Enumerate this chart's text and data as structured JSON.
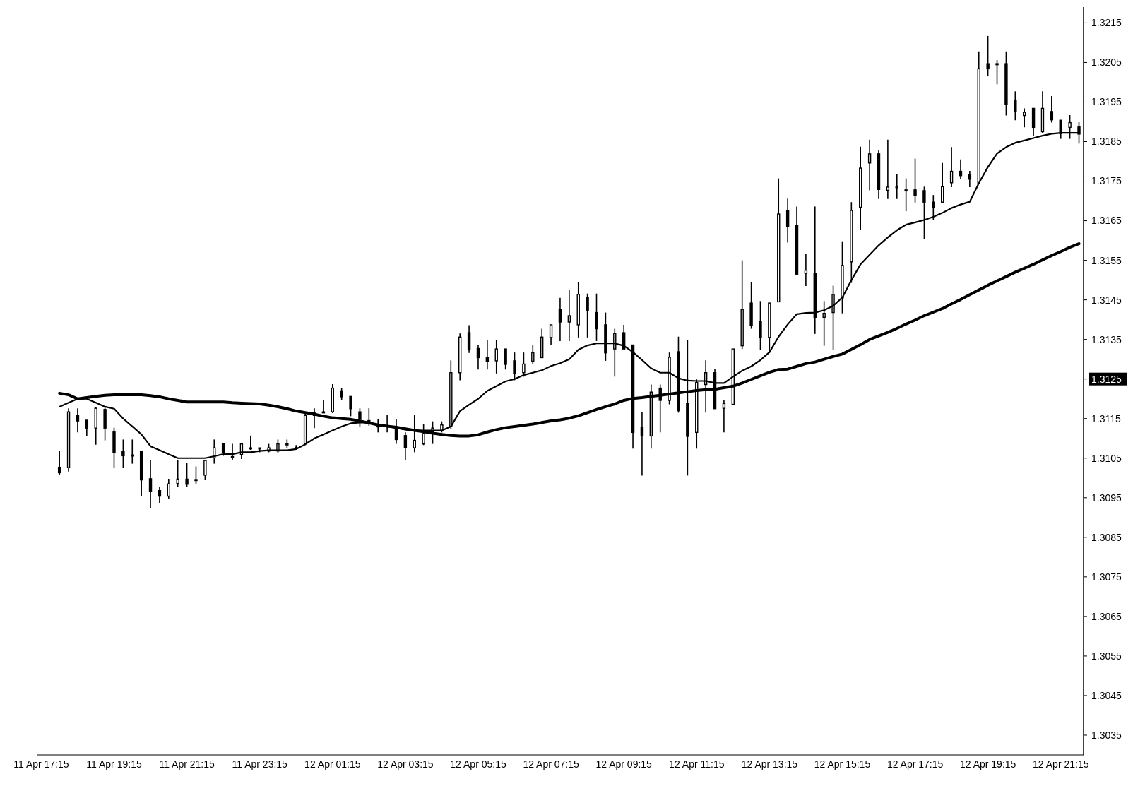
{
  "chart_data": {
    "type": "candlestick",
    "categories": [
      "11 Apr 17:15",
      null,
      null,
      null,
      null,
      null,
      null,
      null,
      "11 Apr 19:15",
      null,
      null,
      null,
      null,
      null,
      null,
      null,
      "11 Apr 21:15",
      null,
      null,
      null,
      null,
      null,
      null,
      null,
      "11 Apr 23:15",
      null,
      null,
      null,
      null,
      null,
      null,
      null,
      "12 Apr 01:15",
      null,
      null,
      null,
      null,
      null,
      null,
      null,
      "12 Apr 03:15",
      null,
      null,
      null,
      null,
      null,
      null,
      null,
      "12 Apr 05:15",
      null,
      null,
      null,
      null,
      null,
      null,
      null,
      "12 Apr 07:15",
      null,
      null,
      null,
      null,
      null,
      null,
      null,
      "12 Apr 09:15",
      null,
      null,
      null,
      null,
      null,
      null,
      null,
      "12 Apr 11:15",
      null,
      null,
      null,
      null,
      null,
      null,
      null,
      "12 Apr 13:15",
      null,
      null,
      null,
      null,
      null,
      null,
      null,
      "12 Apr 15:15",
      null,
      null,
      null,
      null,
      null,
      null,
      null,
      "12 Apr 17:15",
      null,
      null,
      null,
      null,
      null,
      null,
      null,
      "12 Apr 19:15",
      null,
      null,
      null,
      null,
      null,
      null,
      null,
      "12 Apr 21:15",
      null,
      null
    ],
    "ohlc": [
      null,
      null,
      [
        1.31027,
        1.31068,
        1.31007,
        1.31013
      ],
      [
        1.31026,
        1.31176,
        1.31016,
        1.31167
      ],
      [
        1.31158,
        1.31176,
        1.31115,
        1.31144
      ],
      [
        1.31146,
        1.31146,
        1.31106,
        1.31126
      ],
      [
        1.31126,
        1.31179,
        1.31084,
        1.31176
      ],
      [
        1.31173,
        1.31178,
        1.31095,
        1.31126
      ],
      [
        1.31116,
        1.31127,
        1.31026,
        1.31065
      ],
      [
        1.31068,
        1.31097,
        1.31026,
        1.31056
      ],
      [
        1.31058,
        1.31097,
        1.31036,
        1.31058
      ],
      [
        1.31068,
        1.31068,
        1.30954,
        1.30995
      ],
      [
        1.30998,
        1.31046,
        1.30924,
        1.30966
      ],
      [
        1.30968,
        1.30977,
        1.30937,
        1.30954
      ],
      [
        1.30954,
        1.30998,
        1.30946,
        1.30985
      ],
      [
        1.30986,
        1.31046,
        1.30977,
        1.30997
      ],
      [
        1.30997,
        1.31038,
        1.30977,
        1.30984
      ],
      [
        1.30996,
        1.31029,
        1.30984,
        1.30996
      ],
      [
        1.31007,
        1.31044,
        1.30996,
        1.31044
      ],
      [
        1.31051,
        1.31097,
        1.31036,
        1.31076
      ],
      [
        1.31086,
        1.31089,
        1.31056,
        1.31065
      ],
      [
        1.31054,
        1.31086,
        1.31044,
        1.31054
      ],
      [
        1.31059,
        1.31086,
        1.31048,
        1.31086
      ],
      [
        1.31076,
        1.31107,
        1.31071,
        1.31076
      ],
      [
        1.31076,
        1.31076,
        1.31065,
        1.31076
      ],
      [
        1.31068,
        1.31086,
        1.31065,
        1.31076
      ],
      [
        1.31068,
        1.31097,
        1.31064,
        1.31086
      ],
      [
        1.31086,
        1.31097,
        1.31076,
        1.31086
      ],
      [
        1.31077,
        1.31083,
        1.31071,
        1.31077
      ],
      [
        1.31086,
        1.31167,
        1.31083,
        1.31158
      ],
      [
        1.31158,
        1.31176,
        1.31126,
        1.31164
      ],
      [
        1.31167,
        1.31196,
        1.31164,
        1.31167
      ],
      [
        1.31167,
        1.31237,
        1.31164,
        1.31227
      ],
      [
        1.3122,
        1.31227,
        1.31196,
        1.31205
      ],
      [
        1.31206,
        1.31206,
        1.31156,
        1.31175
      ],
      [
        1.31167,
        1.31176,
        1.31128,
        1.31148
      ],
      [
        1.31145,
        1.31176,
        1.31132,
        1.31138
      ],
      [
        1.31136,
        1.31148,
        1.31115,
        1.31129
      ],
      [
        1.31132,
        1.31159,
        1.31115,
        1.31132
      ],
      [
        1.31129,
        1.31148,
        1.31086,
        1.31097
      ],
      [
        1.31107,
        1.31115,
        1.31045,
        1.31077
      ],
      [
        1.31076,
        1.31159,
        1.31065,
        1.31095
      ],
      [
        1.31086,
        1.31136,
        1.31083,
        1.31112
      ],
      [
        1.31117,
        1.31143,
        1.31086,
        1.31126
      ],
      [
        1.31119,
        1.31143,
        1.31115,
        1.31134
      ],
      [
        1.3113,
        1.31297,
        1.31123,
        1.31266
      ],
      [
        1.31266,
        1.31365,
        1.31247,
        1.31356
      ],
      [
        1.31367,
        1.31386,
        1.31316,
        1.31324
      ],
      [
        1.31327,
        1.31336,
        1.31274,
        1.31304
      ],
      [
        1.31305,
        1.31348,
        1.31274,
        1.31295
      ],
      [
        1.31296,
        1.31348,
        1.31264,
        1.31326
      ],
      [
        1.31326,
        1.31326,
        1.31274,
        1.31287
      ],
      [
        1.31296,
        1.31317,
        1.31247,
        1.31264
      ],
      [
        1.31266,
        1.31317,
        1.31256,
        1.31288
      ],
      [
        1.31295,
        1.31336,
        1.31287,
        1.31317
      ],
      [
        1.31304,
        1.31377,
        1.31304,
        1.31356
      ],
      [
        1.31355,
        1.31387,
        1.31336,
        1.31387
      ],
      [
        1.31426,
        1.31455,
        1.31346,
        1.31394
      ],
      [
        1.31394,
        1.31476,
        1.31346,
        1.3141
      ],
      [
        1.31387,
        1.31495,
        1.31355,
        1.31464
      ],
      [
        1.31456,
        1.31466,
        1.31355,
        1.31424
      ],
      [
        1.31418,
        1.31466,
        1.31346,
        1.31377
      ],
      [
        1.31387,
        1.31418,
        1.31296,
        1.31316
      ],
      [
        1.31326,
        1.31377,
        1.31256,
        1.31365
      ],
      [
        1.31367,
        1.31387,
        1.31326,
        1.31326
      ],
      [
        1.31336,
        1.31336,
        1.31074,
        1.31115
      ],
      [
        1.31128,
        1.31167,
        1.31006,
        1.31106
      ],
      [
        1.31106,
        1.31236,
        1.31074,
        1.31217
      ],
      [
        1.31227,
        1.31236,
        1.31115,
        1.31196
      ],
      [
        1.31196,
        1.31317,
        1.31186,
        1.31305
      ],
      [
        1.31319,
        1.31357,
        1.31165,
        1.3117
      ],
      [
        1.31189,
        1.31348,
        1.31006,
        1.31105
      ],
      [
        1.31115,
        1.31249,
        1.31074,
        1.31241
      ],
      [
        1.31236,
        1.31297,
        1.31165,
        1.31266
      ],
      [
        1.31266,
        1.31275,
        1.31175,
        1.31175
      ],
      [
        1.31176,
        1.31196,
        1.31115,
        1.31188
      ],
      [
        1.31186,
        1.31326,
        1.31186,
        1.31326
      ],
      [
        1.31334,
        1.3155,
        1.31326,
        1.31426
      ],
      [
        1.31442,
        1.31495,
        1.31377,
        1.31385
      ],
      [
        1.31396,
        1.31447,
        1.31324,
        1.31355
      ],
      [
        1.31355,
        1.31442,
        1.31316,
        1.31442
      ],
      [
        1.31445,
        1.31757,
        1.31445,
        1.31667
      ],
      [
        1.31676,
        1.31706,
        1.31595,
        1.31635
      ],
      [
        1.31638,
        1.31686,
        1.31515,
        1.31515
      ],
      [
        1.31517,
        1.31567,
        1.31485,
        1.31525
      ],
      [
        1.31517,
        1.31686,
        1.31364,
        1.31406
      ],
      [
        1.31406,
        1.31447,
        1.31334,
        1.31416
      ],
      [
        1.31418,
        1.31486,
        1.31324,
        1.31464
      ],
      [
        1.31455,
        1.31598,
        1.31416,
        1.31537
      ],
      [
        1.31546,
        1.31697,
        1.31493,
        1.31676
      ],
      [
        1.31684,
        1.31837,
        1.31626,
        1.31783
      ],
      [
        1.31796,
        1.31855,
        1.31727,
        1.31819
      ],
      [
        1.31819,
        1.31828,
        1.31705,
        1.31729
      ],
      [
        1.31727,
        1.31855,
        1.31705,
        1.31735
      ],
      [
        1.31736,
        1.31767,
        1.31705,
        1.31736
      ],
      [
        1.31728,
        1.31757,
        1.31674,
        1.31728
      ],
      [
        1.31728,
        1.31807,
        1.31696,
        1.31713
      ],
      [
        1.31726,
        1.31736,
        1.31604,
        1.31697
      ],
      [
        1.31697,
        1.31715,
        1.31651,
        1.31684
      ],
      [
        1.31697,
        1.31796,
        1.31697,
        1.31736
      ],
      [
        1.31746,
        1.31836,
        1.31735,
        1.31775
      ],
      [
        1.31775,
        1.31805,
        1.31755,
        1.31764
      ],
      [
        1.31767,
        1.31776,
        1.31735,
        1.31755
      ],
      [
        1.31744,
        1.32078,
        1.31744,
        1.32034
      ],
      [
        1.32047,
        1.32117,
        1.32015,
        1.32034
      ],
      [
        1.32047,
        1.32056,
        1.31995,
        1.32047
      ],
      [
        1.32047,
        1.32078,
        1.31916,
        1.31945
      ],
      [
        1.31955,
        1.31977,
        1.31904,
        1.31926
      ],
      [
        1.31916,
        1.31934,
        1.31886,
        1.31924
      ],
      [
        1.31934,
        1.31934,
        1.31865,
        1.31886
      ],
      [
        1.31875,
        1.31977,
        1.31872,
        1.31934
      ],
      [
        1.31926,
        1.31965,
        1.31898,
        1.31905
      ],
      [
        1.31904,
        1.31904,
        1.31857,
        1.3187
      ],
      [
        1.31886,
        1.31917,
        1.31857,
        1.31898
      ],
      [
        1.31887,
        1.31899,
        1.31845,
        1.31869
      ]
    ],
    "colors": [
      null,
      null,
      "#000000",
      "#ffffff",
      "#000000",
      "#000000",
      "#ffffff",
      "#000000",
      "#000000",
      "#000000",
      "#ffffff",
      "#000000",
      "#000000",
      "#000000",
      "#ffffff",
      "#ffffff",
      "#000000",
      "#ffffff",
      "#ffffff",
      "#ffffff",
      "#000000",
      "#ffffff",
      "#ffffff",
      "#ffffff",
      "#ffffff",
      "#ffffff",
      "#ffffff",
      "#ffffff",
      "#ffffff",
      "#ffffff",
      "#ffffff",
      "#ffffff",
      "#ffffff",
      "#000000",
      "#000000",
      "#000000",
      "#000000",
      "#000000",
      "#ffffff",
      "#000000",
      "#000000",
      "#ffffff",
      "#ffffff",
      "#ffffff",
      "#ffffff",
      "#ffffff",
      "#ffffff",
      "#000000",
      "#000000",
      "#000000",
      "#ffffff",
      "#000000",
      "#000000",
      "#ffffff",
      "#ffffff",
      "#ffffff",
      "#ffffff",
      "#000000",
      "#ffffff",
      "#ffffff",
      "#000000",
      "#000000",
      "#000000",
      "#ffffff",
      "#000000",
      "#000000",
      "#000000",
      "#ffffff",
      "#000000",
      "#ffffff",
      "#000000",
      "#000000",
      "#ffffff",
      "#ffffff",
      "#000000",
      "#ffffff",
      "#ffffff",
      "#ffffff",
      "#000000",
      "#000000",
      "#ffffff",
      "#ffffff",
      "#000000",
      "#000000",
      "#ffffff",
      "#000000",
      "#ffffff",
      "#ffffff",
      "#ffffff",
      "#ffffff",
      "#ffffff",
      "#ffffff",
      "#000000",
      "#ffffff",
      "#ffffff",
      "#ffffff",
      "#000000",
      "#000000",
      "#000000",
      "#ffffff",
      "#ffffff",
      "#000000",
      "#000000",
      "#ffffff",
      "#000000",
      "#ffffff",
      "#000000",
      "#000000",
      "#ffffff",
      "#000000",
      "#ffffff",
      "#000000",
      "#000000",
      "#ffffff",
      "#000000"
    ],
    "color": "#000000",
    "series": [
      {
        "type": "line",
        "color": "#000000",
        "values": [
          null,
          null,
          1.3118,
          1.3119,
          1.312,
          1.312,
          1.3119,
          1.3118,
          1.31175,
          1.3115,
          1.3113,
          1.3111,
          1.3108,
          1.3107,
          1.3106,
          1.3105,
          1.3105,
          1.3105,
          1.3105,
          1.31055,
          1.3106,
          1.3106,
          1.31065,
          1.31065,
          1.31068,
          1.3107,
          1.3107,
          1.3107,
          1.31073,
          1.31085,
          1.311,
          1.3111,
          1.3112,
          1.3113,
          1.31138,
          1.3114,
          1.3114,
          1.31134,
          1.3113,
          1.31126,
          1.31122,
          1.3112,
          1.3112,
          1.3112,
          1.3112,
          1.3113,
          1.31169,
          1.31185,
          1.312,
          1.3122,
          1.31232,
          1.31244,
          1.3125,
          1.3126,
          1.31266,
          1.31272,
          1.31283,
          1.3129,
          1.313,
          1.31324,
          1.31335,
          1.3134,
          1.3134,
          1.3134,
          1.31334,
          1.31318,
          1.31298,
          1.31277,
          1.31266,
          1.31266,
          1.31252,
          1.31246,
          1.31245,
          1.31245,
          1.3124,
          1.3124,
          1.31256,
          1.31271,
          1.31282,
          1.31298,
          1.31318,
          1.31357,
          1.31388,
          1.31414,
          1.31417,
          1.31418,
          1.31424,
          1.31435,
          1.31456,
          1.315,
          1.3154,
          1.31564,
          1.31588,
          1.31608,
          1.31626,
          1.3164,
          1.31646,
          1.31652,
          1.3166,
          1.3167,
          1.31682,
          1.31691,
          1.31698,
          1.31745,
          1.31786,
          1.3182,
          1.31836,
          1.31847,
          1.31853,
          1.31859,
          1.31865,
          1.3187,
          1.31872,
          1.31872,
          1.31872
        ]
      },
      {
        "type": "line",
        "color": "#000000",
        "values": [
          null,
          null,
          1.31214,
          1.3121,
          1.312,
          1.31203,
          1.31206,
          1.31209,
          1.3121,
          1.3121,
          1.3121,
          1.3121,
          1.31208,
          1.31205,
          1.312,
          1.31196,
          1.31192,
          1.31192,
          1.31192,
          1.31192,
          1.31192,
          1.3119,
          1.31189,
          1.31188,
          1.31187,
          1.31184,
          1.3118,
          1.31175,
          1.31169,
          1.31165,
          1.31161,
          1.31156,
          1.31152,
          1.3115,
          1.31148,
          1.31144,
          1.31139,
          1.31134,
          1.31131,
          1.31128,
          1.31124,
          1.3112,
          1.31117,
          1.31113,
          1.3111,
          1.31107,
          1.31106,
          1.31106,
          1.31109,
          1.31116,
          1.31122,
          1.31127,
          1.3113,
          1.31133,
          1.31136,
          1.3114,
          1.31144,
          1.31147,
          1.31151,
          1.31157,
          1.31165,
          1.31173,
          1.3118,
          1.31187,
          1.31196,
          1.31201,
          1.31203,
          1.31206,
          1.31209,
          1.31212,
          1.31215,
          1.31218,
          1.31221,
          1.31223,
          1.31224,
          1.31228,
          1.31232,
          1.3124,
          1.31249,
          1.31258,
          1.31267,
          1.31274,
          1.31275,
          1.31282,
          1.31289,
          1.31293,
          1.313,
          1.31307,
          1.31313,
          1.31325,
          1.31337,
          1.3135,
          1.31359,
          1.31368,
          1.31378,
          1.31389,
          1.31399,
          1.3141,
          1.31419,
          1.31428,
          1.3144,
          1.31451,
          1.31463,
          1.31475,
          1.31487,
          1.31498,
          1.31509,
          1.3152,
          1.3153,
          1.3154,
          1.31551,
          1.31562,
          1.31572,
          1.31583,
          1.31592
        ]
      }
    ],
    "ylim": [
      1.303,
      1.3219
    ],
    "yticks": [
      1.3035,
      1.3045,
      1.3055,
      1.3065,
      1.3075,
      1.3085,
      1.3095,
      1.3105,
      1.3115,
      {
        "value": 1.3125,
        "label": "1.3125"
      },
      1.3135,
      1.3145,
      1.3155,
      1.3165,
      1.3175,
      1.3185,
      1.3195,
      1.3205,
      1.3215
    ]
  }
}
